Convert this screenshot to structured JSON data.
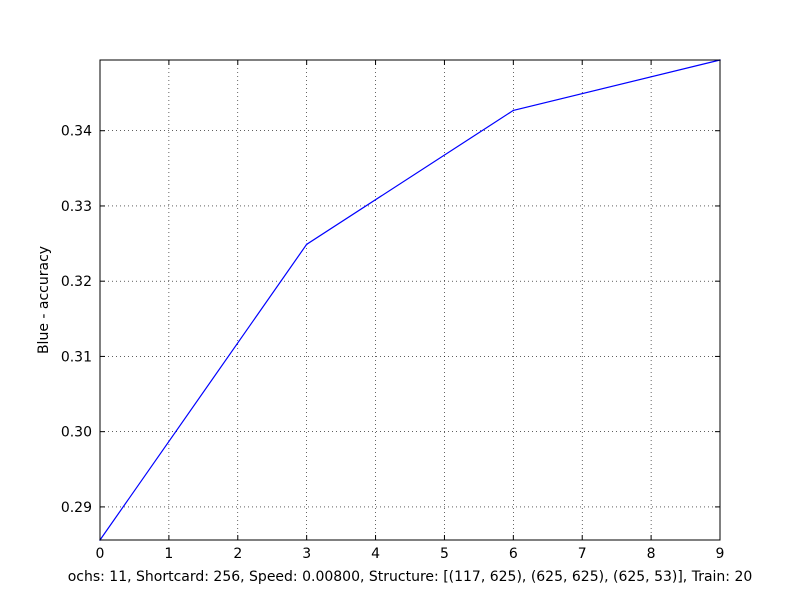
{
  "chart_data": {
    "type": "line",
    "title": "",
    "xlabel": "ochs: 11, Shortcard: 256, Speed: 0.00800, Structure: [(117, 625), (625, 625), (625, 53)], Train: 20",
    "ylabel": "Blue - accuracy",
    "xlim": [
      0,
      9
    ],
    "ylim": [
      0.2856,
      0.3494
    ],
    "x_ticks": [
      0,
      1,
      2,
      3,
      4,
      5,
      6,
      7,
      8,
      9
    ],
    "x_tick_labels": [
      "0",
      "1",
      "2",
      "3",
      "4",
      "5",
      "6",
      "7",
      "8",
      "9"
    ],
    "y_ticks": [
      0.29,
      0.3,
      0.31,
      0.32,
      0.33,
      0.34
    ],
    "y_tick_labels": [
      "0.29",
      "0.30",
      "0.31",
      "0.32",
      "0.33",
      "0.34"
    ],
    "grid": true,
    "series": [
      {
        "color": "#0000ff",
        "x": [
          0,
          3,
          6,
          9
        ],
        "y": [
          0.2856,
          0.3249,
          0.3427,
          0.3494
        ]
      }
    ]
  }
}
